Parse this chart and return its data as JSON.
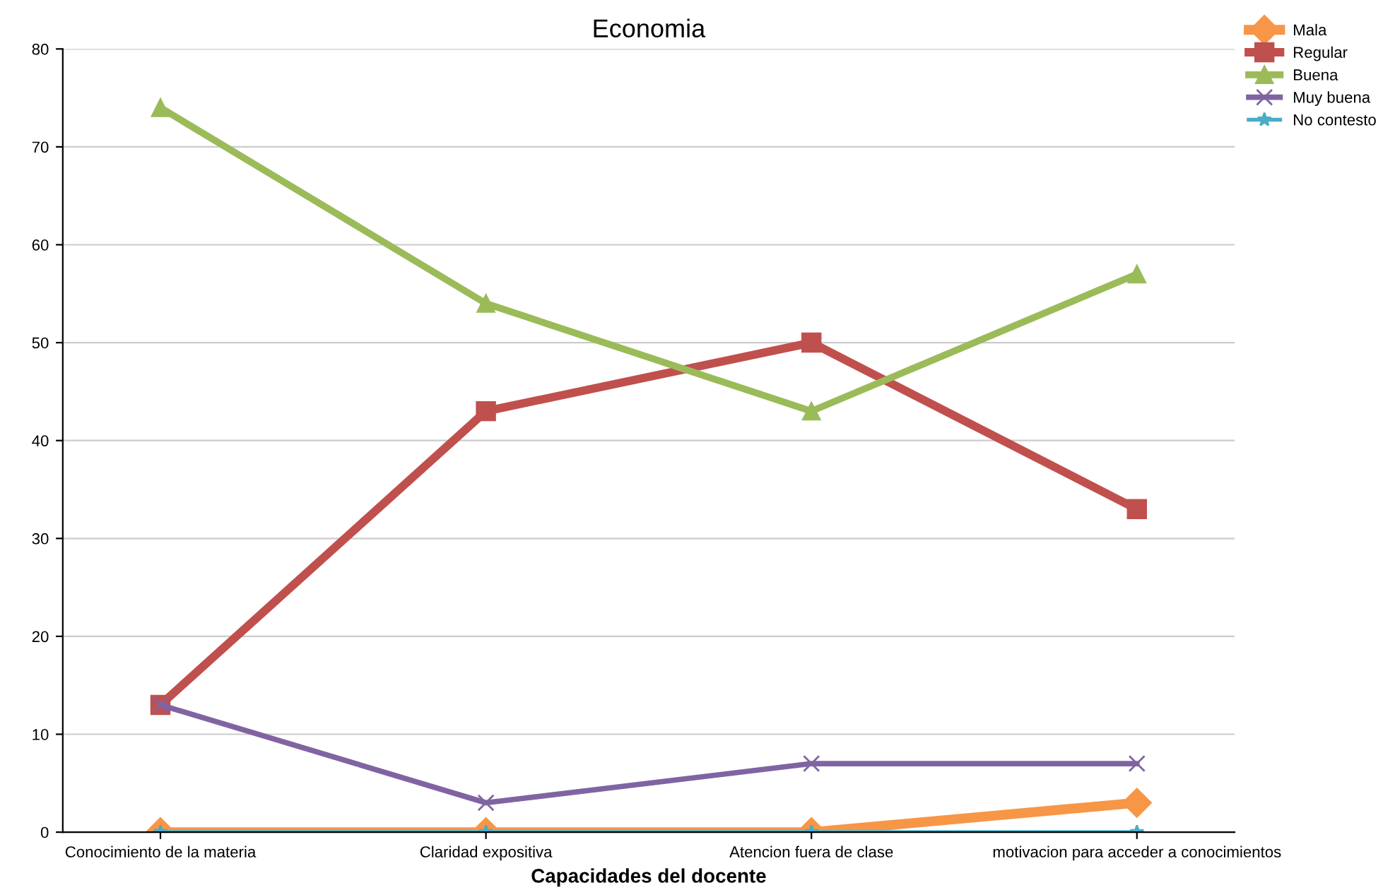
{
  "chart_data": {
    "type": "line",
    "title": "Economia",
    "xlabel": "Capacidades del docente",
    "categories": [
      "Conocimiento de la materia",
      "Claridad expositiva",
      "Atencion fuera de clase",
      "motivacion para acceder a conocimientos"
    ],
    "series": [
      {
        "name": "Mala",
        "color": "#f79646",
        "values": [
          0,
          0,
          0,
          3
        ],
        "marker": "diamond"
      },
      {
        "name": "Regular",
        "color": "#c0504d",
        "values": [
          13,
          43,
          50,
          33
        ],
        "marker": "square"
      },
      {
        "name": "Buena",
        "color": "#9bbb59",
        "values": [
          74,
          54,
          43,
          57
        ],
        "marker": "triangle"
      },
      {
        "name": "Muy buena",
        "color": "#8064a2",
        "values": [
          13,
          3,
          7,
          7
        ],
        "marker": "cross"
      },
      {
        "name": "No contesto",
        "color": "#4bacc6",
        "values": [
          0,
          0,
          0,
          0
        ],
        "marker": "star"
      }
    ],
    "ylim": [
      0,
      80
    ],
    "yticks": [
      0,
      10,
      20,
      30,
      40,
      50,
      60,
      70,
      80
    ],
    "grid": "y",
    "legend": "top right"
  }
}
